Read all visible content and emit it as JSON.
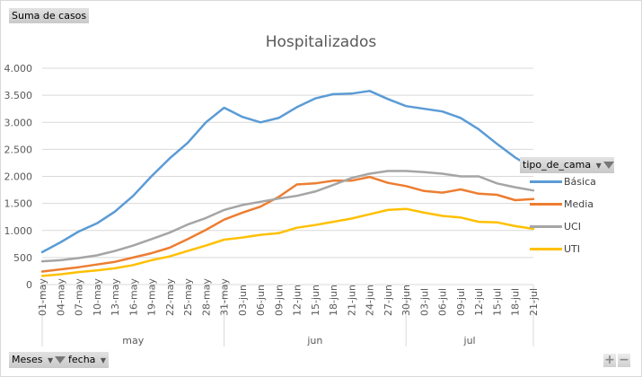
{
  "field_buttons": {
    "values_field": "Suma de casos",
    "legend_field": "tipo_de_cama",
    "axis_fields": [
      "Meses",
      "fecha"
    ]
  },
  "zoom_controls": {
    "expand": "+",
    "collapse": "−"
  },
  "chart_data": {
    "type": "line",
    "title": "Hospitalizados",
    "xlabel": "",
    "ylabel": "",
    "ylim": [
      0,
      4000
    ],
    "yticks": [
      0,
      500,
      1000,
      1500,
      2000,
      2500,
      3000,
      3500,
      4000
    ],
    "ytick_labels": [
      "0",
      "500",
      "1.000",
      "1.500",
      "2.000",
      "2.500",
      "3.000",
      "3.500",
      "4.000"
    ],
    "grid": true,
    "legend_position": "right",
    "x_tick_labels": [
      "01-may",
      "04-may",
      "07-may",
      "10-may",
      "13-may",
      "16-may",
      "19-may",
      "22-may",
      "25-may",
      "28-may",
      "31-may",
      "03-jun",
      "06-jun",
      "09-jun",
      "12-jun",
      "15-jun",
      "18-jun",
      "21-jun",
      "24-jun",
      "27-jun",
      "30-jun",
      "03-jul",
      "06-jul",
      "09-jul",
      "12-jul",
      "15-jul",
      "18-jul",
      "21-jul"
    ],
    "x_groups": [
      {
        "label": "may",
        "start": "01-may",
        "end": "31-may"
      },
      {
        "label": "jun",
        "start": "01-jun",
        "end": "30-jun"
      },
      {
        "label": "jul",
        "start": "01-jul",
        "end": "21-jul"
      }
    ],
    "x_day_start": "01-may",
    "x_day_count": 82,
    "x_sample_step_days": 3,
    "series": [
      {
        "name": "Básica",
        "color": "#5b9bd5",
        "values": [
          600,
          780,
          980,
          1130,
          1350,
          1640,
          2000,
          2330,
          2620,
          3000,
          3270,
          3100,
          3000,
          3080,
          3280,
          3440,
          3520,
          3530,
          3580,
          3430,
          3300,
          3250,
          3200,
          3080,
          2870,
          2600,
          2350,
          2150
        ]
      },
      {
        "name": "Media",
        "color": "#ed7d31",
        "values": [
          240,
          280,
          320,
          370,
          420,
          500,
          580,
          680,
          840,
          1010,
          1200,
          1330,
          1440,
          1620,
          1850,
          1870,
          1920,
          1920,
          1990,
          1880,
          1820,
          1730,
          1700,
          1760,
          1680,
          1660,
          1560,
          1580
        ]
      },
      {
        "name": "UCI",
        "color": "#a5a5a5",
        "values": [
          430,
          450,
          490,
          540,
          620,
          720,
          840,
          960,
          1110,
          1230,
          1380,
          1470,
          1530,
          1590,
          1640,
          1720,
          1840,
          1970,
          2050,
          2100,
          2100,
          2080,
          2050,
          2000,
          2000,
          1870,
          1800,
          1740
        ]
      },
      {
        "name": "UTI",
        "color": "#ffc000",
        "values": [
          160,
          190,
          230,
          260,
          300,
          360,
          450,
          520,
          620,
          720,
          830,
          870,
          920,
          950,
          1050,
          1100,
          1160,
          1220,
          1300,
          1380,
          1400,
          1330,
          1270,
          1240,
          1160,
          1150,
          1080,
          1030
        ]
      }
    ]
  }
}
